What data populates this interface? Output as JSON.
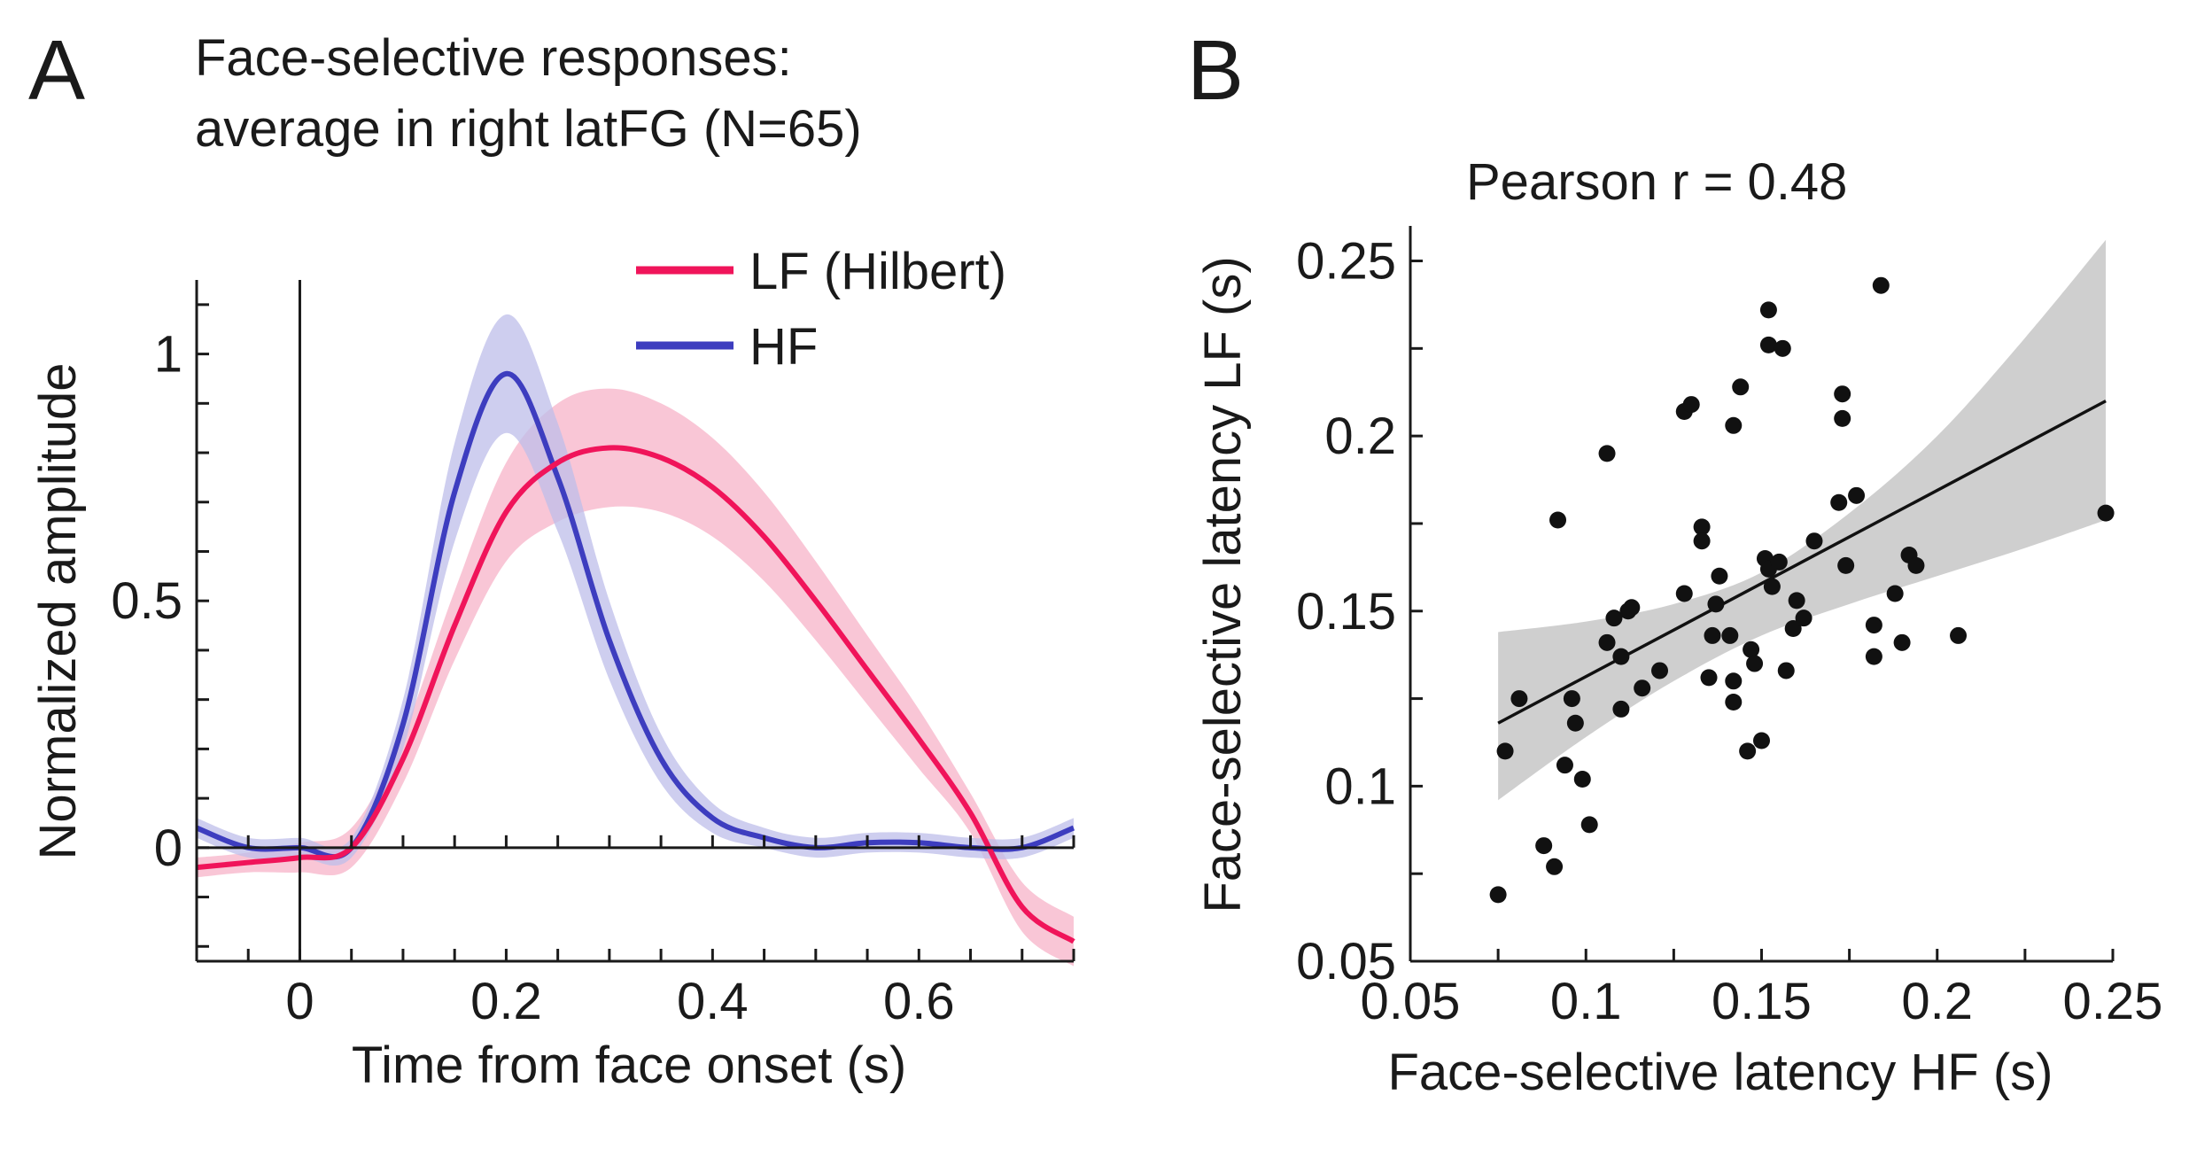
{
  "panel_a_letter": "A",
  "panel_b_letter": "B",
  "chart_data": [
    {
      "type": "line",
      "title_lines": [
        "Face-selective responses:",
        "average in right latFG (N=65)"
      ],
      "xlabel": "Time from face onset (s)",
      "ylabel": "Normalized amplitude",
      "xlim": [
        -0.1,
        0.75
      ],
      "ylim": [
        -0.23,
        1.15
      ],
      "xticks": [
        0,
        0.2,
        0.4,
        0.6
      ],
      "xtick_labels": [
        "0",
        "0.2",
        "0.4",
        "0.6"
      ],
      "yticks": [
        0,
        0.5,
        1
      ],
      "ytick_labels": [
        "0",
        "0.5",
        "1"
      ],
      "legend_position": "top-right",
      "legend": [
        "LF (Hilbert)",
        "HF"
      ],
      "colors": {
        "LF": "#f0145a",
        "HF": "#3d3dbf",
        "LF_band": "#f7b3c8",
        "HF_band": "#bdbdea"
      },
      "x": [
        -0.1,
        -0.05,
        0,
        0.05,
        0.1,
        0.15,
        0.2,
        0.25,
        0.3,
        0.35,
        0.4,
        0.45,
        0.5,
        0.55,
        0.6,
        0.65,
        0.7,
        0.75
      ],
      "series": [
        {
          "name": "LF (Hilbert)",
          "values": [
            -0.04,
            -0.03,
            -0.02,
            0.0,
            0.18,
            0.45,
            0.68,
            0.78,
            0.81,
            0.79,
            0.73,
            0.63,
            0.5,
            0.36,
            0.22,
            0.07,
            -0.12,
            -0.19
          ],
          "sem": [
            0.02,
            0.02,
            0.03,
            0.04,
            0.05,
            0.07,
            0.1,
            0.12,
            0.12,
            0.11,
            0.1,
            0.09,
            0.08,
            0.07,
            0.06,
            0.04,
            0.05,
            0.05
          ]
        },
        {
          "name": "HF",
          "values": [
            0.04,
            0.0,
            0.0,
            0.0,
            0.25,
            0.72,
            0.96,
            0.75,
            0.42,
            0.18,
            0.06,
            0.02,
            0.0,
            0.01,
            0.01,
            0.0,
            0.0,
            0.04
          ],
          "sem": [
            0.02,
            0.02,
            0.02,
            0.02,
            0.05,
            0.1,
            0.12,
            0.11,
            0.08,
            0.05,
            0.03,
            0.02,
            0.02,
            0.02,
            0.02,
            0.02,
            0.02,
            0.02
          ]
        }
      ]
    },
    {
      "type": "scatter",
      "title": "Pearson r = 0.48",
      "xlabel": "Face-selective latency HF (s)",
      "ylabel": "Face-selective latency LF (s)",
      "xlim": [
        0.05,
        0.25
      ],
      "ylim": [
        0.05,
        0.26
      ],
      "xticks": [
        0.05,
        0.1,
        0.15,
        0.2,
        0.25
      ],
      "xtick_labels": [
        "0.05",
        "0.1",
        "0.15",
        "0.2",
        "0.25"
      ],
      "yticks": [
        0.05,
        0.1,
        0.15,
        0.2,
        0.25
      ],
      "ytick_labels": [
        "0.05",
        "0.1",
        "0.15",
        "0.2",
        "0.25"
      ],
      "fit_line": {
        "x": [
          0.075,
          0.248
        ],
        "y": [
          0.118,
          0.21
        ]
      },
      "confidence_band": {
        "x": [
          0.075,
          0.1,
          0.125,
          0.15,
          0.175,
          0.2,
          0.225,
          0.248
        ],
        "upper": [
          0.144,
          0.147,
          0.152,
          0.161,
          0.178,
          0.2,
          0.228,
          0.256
        ],
        "lower": [
          0.096,
          0.114,
          0.13,
          0.143,
          0.152,
          0.16,
          0.168,
          0.176
        ]
      },
      "points": [
        [
          0.075,
          0.069
        ],
        [
          0.077,
          0.11
        ],
        [
          0.081,
          0.125
        ],
        [
          0.088,
          0.083
        ],
        [
          0.091,
          0.077
        ],
        [
          0.092,
          0.176
        ],
        [
          0.094,
          0.106
        ],
        [
          0.096,
          0.125
        ],
        [
          0.097,
          0.118
        ],
        [
          0.099,
          0.102
        ],
        [
          0.101,
          0.089
        ],
        [
          0.106,
          0.195
        ],
        [
          0.106,
          0.141
        ],
        [
          0.108,
          0.148
        ],
        [
          0.11,
          0.122
        ],
        [
          0.11,
          0.137
        ],
        [
          0.112,
          0.15
        ],
        [
          0.113,
          0.151
        ],
        [
          0.116,
          0.128
        ],
        [
          0.121,
          0.133
        ],
        [
          0.128,
          0.207
        ],
        [
          0.13,
          0.209
        ],
        [
          0.128,
          0.155
        ],
        [
          0.133,
          0.174
        ],
        [
          0.133,
          0.17
        ],
        [
          0.135,
          0.131
        ],
        [
          0.136,
          0.143
        ],
        [
          0.137,
          0.152
        ],
        [
          0.138,
          0.16
        ],
        [
          0.142,
          0.203
        ],
        [
          0.141,
          0.143
        ],
        [
          0.142,
          0.13
        ],
        [
          0.142,
          0.124
        ],
        [
          0.144,
          0.214
        ],
        [
          0.146,
          0.11
        ],
        [
          0.147,
          0.139
        ],
        [
          0.148,
          0.135
        ],
        [
          0.15,
          0.113
        ],
        [
          0.151,
          0.165
        ],
        [
          0.152,
          0.236
        ],
        [
          0.152,
          0.226
        ],
        [
          0.152,
          0.162
        ],
        [
          0.153,
          0.157
        ],
        [
          0.155,
          0.164
        ],
        [
          0.156,
          0.225
        ],
        [
          0.157,
          0.133
        ],
        [
          0.159,
          0.145
        ],
        [
          0.16,
          0.153
        ],
        [
          0.162,
          0.148
        ],
        [
          0.165,
          0.17
        ],
        [
          0.172,
          0.181
        ],
        [
          0.173,
          0.212
        ],
        [
          0.173,
          0.205
        ],
        [
          0.174,
          0.163
        ],
        [
          0.177,
          0.183
        ],
        [
          0.182,
          0.146
        ],
        [
          0.182,
          0.137
        ],
        [
          0.184,
          0.243
        ],
        [
          0.188,
          0.155
        ],
        [
          0.19,
          0.141
        ],
        [
          0.192,
          0.166
        ],
        [
          0.194,
          0.163
        ],
        [
          0.206,
          0.143
        ],
        [
          0.248,
          0.178
        ]
      ]
    }
  ]
}
